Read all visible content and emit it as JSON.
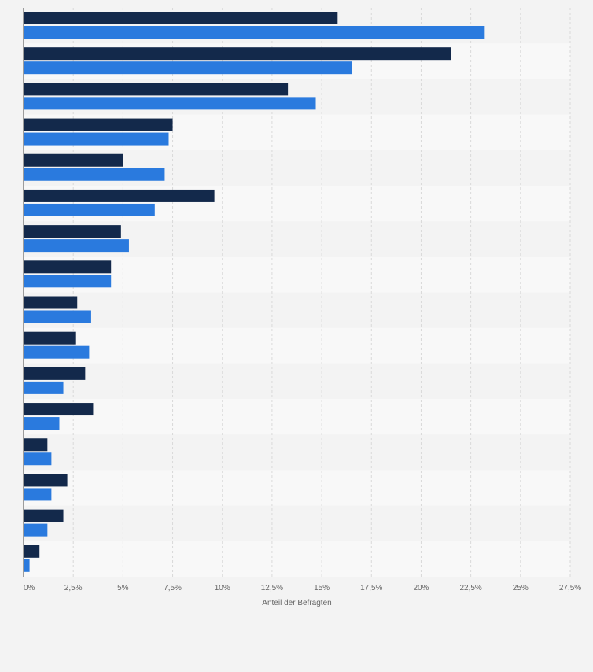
{
  "chart_data": {
    "type": "bar",
    "orientation": "horizontal",
    "categories": [
      "",
      "",
      "",
      "",
      "",
      "",
      "",
      "",
      "",
      "",
      "",
      "",
      "",
      "",
      "",
      ""
    ],
    "series": [
      {
        "color": "#13294b",
        "values": [
          15.8,
          21.5,
          13.3,
          7.5,
          5.0,
          9.6,
          4.9,
          4.4,
          2.7,
          2.6,
          3.1,
          3.5,
          1.2,
          2.2,
          2.0,
          0.8
        ]
      },
      {
        "color": "#2a7ade",
        "values": [
          23.2,
          16.5,
          14.7,
          7.3,
          7.1,
          6.6,
          5.3,
          4.4,
          3.4,
          3.3,
          2.0,
          1.8,
          1.4,
          1.4,
          1.2,
          0.3
        ]
      }
    ],
    "xlim": [
      0,
      27.5
    ],
    "xticks": [
      0,
      2.5,
      5,
      7.5,
      10,
      12.5,
      15,
      17.5,
      20,
      22.5,
      25,
      27.5
    ],
    "xtick_labels": [
      "0%",
      "2,5%",
      "5%",
      "7,5%",
      "10%",
      "12,5%",
      "15%",
      "17,5%",
      "20%",
      "22,5%",
      "25%",
      "27,5%"
    ],
    "xlabel": "Anteil der Befragten",
    "grid": true,
    "legend": "none"
  }
}
